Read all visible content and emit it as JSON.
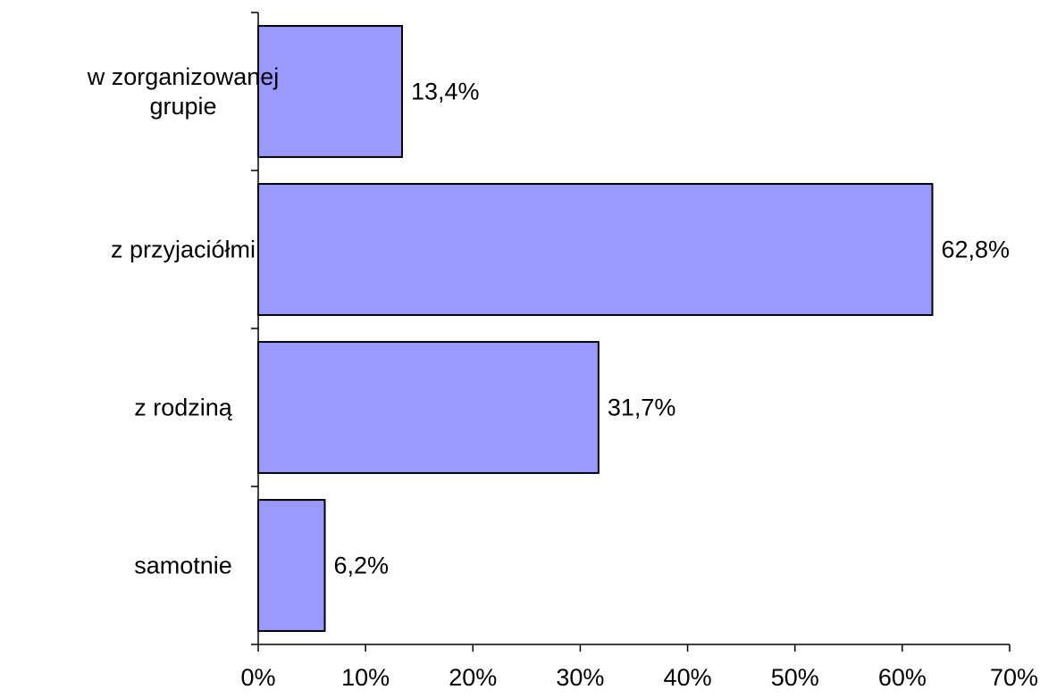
{
  "chart_data": {
    "type": "bar",
    "orientation": "horizontal",
    "categories": [
      [
        "w zorganizowanej",
        "grupie"
      ],
      [
        "z przyjaciółmi"
      ],
      [
        "z rodziną"
      ],
      [
        "samotnie"
      ]
    ],
    "values": [
      13.4,
      62.8,
      31.7,
      6.2
    ],
    "data_labels": [
      "13,4%",
      "62,8%",
      "31,7%",
      "6,2%"
    ],
    "x_ticks": [
      "0%",
      "10%",
      "20%",
      "30%",
      "40%",
      "50%",
      "60%",
      "70%"
    ],
    "xlim": [
      0,
      70
    ],
    "grid": false,
    "legend": "none",
    "bar_color": "#9999ff",
    "bar_edge_color": "#000000"
  }
}
